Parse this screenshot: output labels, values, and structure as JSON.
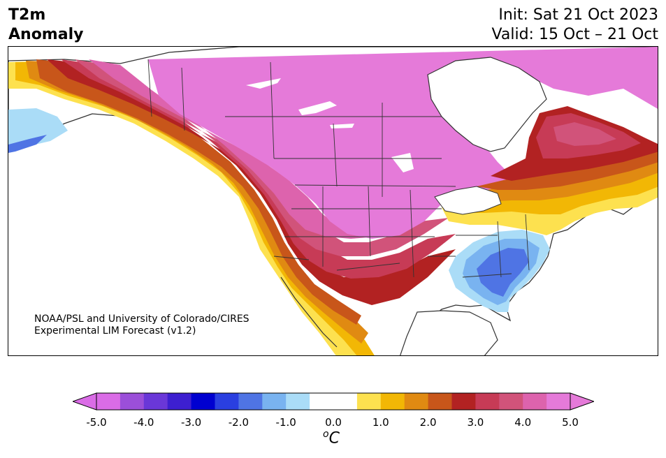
{
  "header": {
    "variable": "T2m",
    "type": "Anomaly",
    "init": "Init: Sat 21 Oct 2023",
    "valid": "Valid: 15 Oct – 21 Oct"
  },
  "credit": {
    "line1": "NOAA/PSL and University of Colorado/CIRES",
    "line2": "Experimental LIM Forecast (v1.2)"
  },
  "colorbar": {
    "unit_symbol": "o",
    "unit_letter": "C",
    "ticks": [
      "-5.0",
      "-4.0",
      "-3.0",
      "-2.0",
      "-1.0",
      "0.0",
      "1.0",
      "2.0",
      "3.0",
      "4.0",
      "5.0"
    ],
    "colors": [
      "#da6ce6",
      "#9b4fd9",
      "#6a37d8",
      "#3d1fd0",
      "#0000d0",
      "#2a3fe0",
      "#4f74e4",
      "#79b3f0",
      "#aadcf7",
      "#ffffff",
      "#ffffff",
      "#fde14f",
      "#f2b705",
      "#e08a12",
      "#c8561a",
      "#b22222",
      "#c73b56",
      "#d1537a",
      "#dd63ad",
      "#e57ad9"
    ],
    "extend_low_color": "#da6ce6",
    "extend_high_color": "#e57ad9"
  },
  "legend_colors": {
    "land_neutral": "#ffffff",
    "water": "#ffffff",
    "border": "#333333"
  }
}
